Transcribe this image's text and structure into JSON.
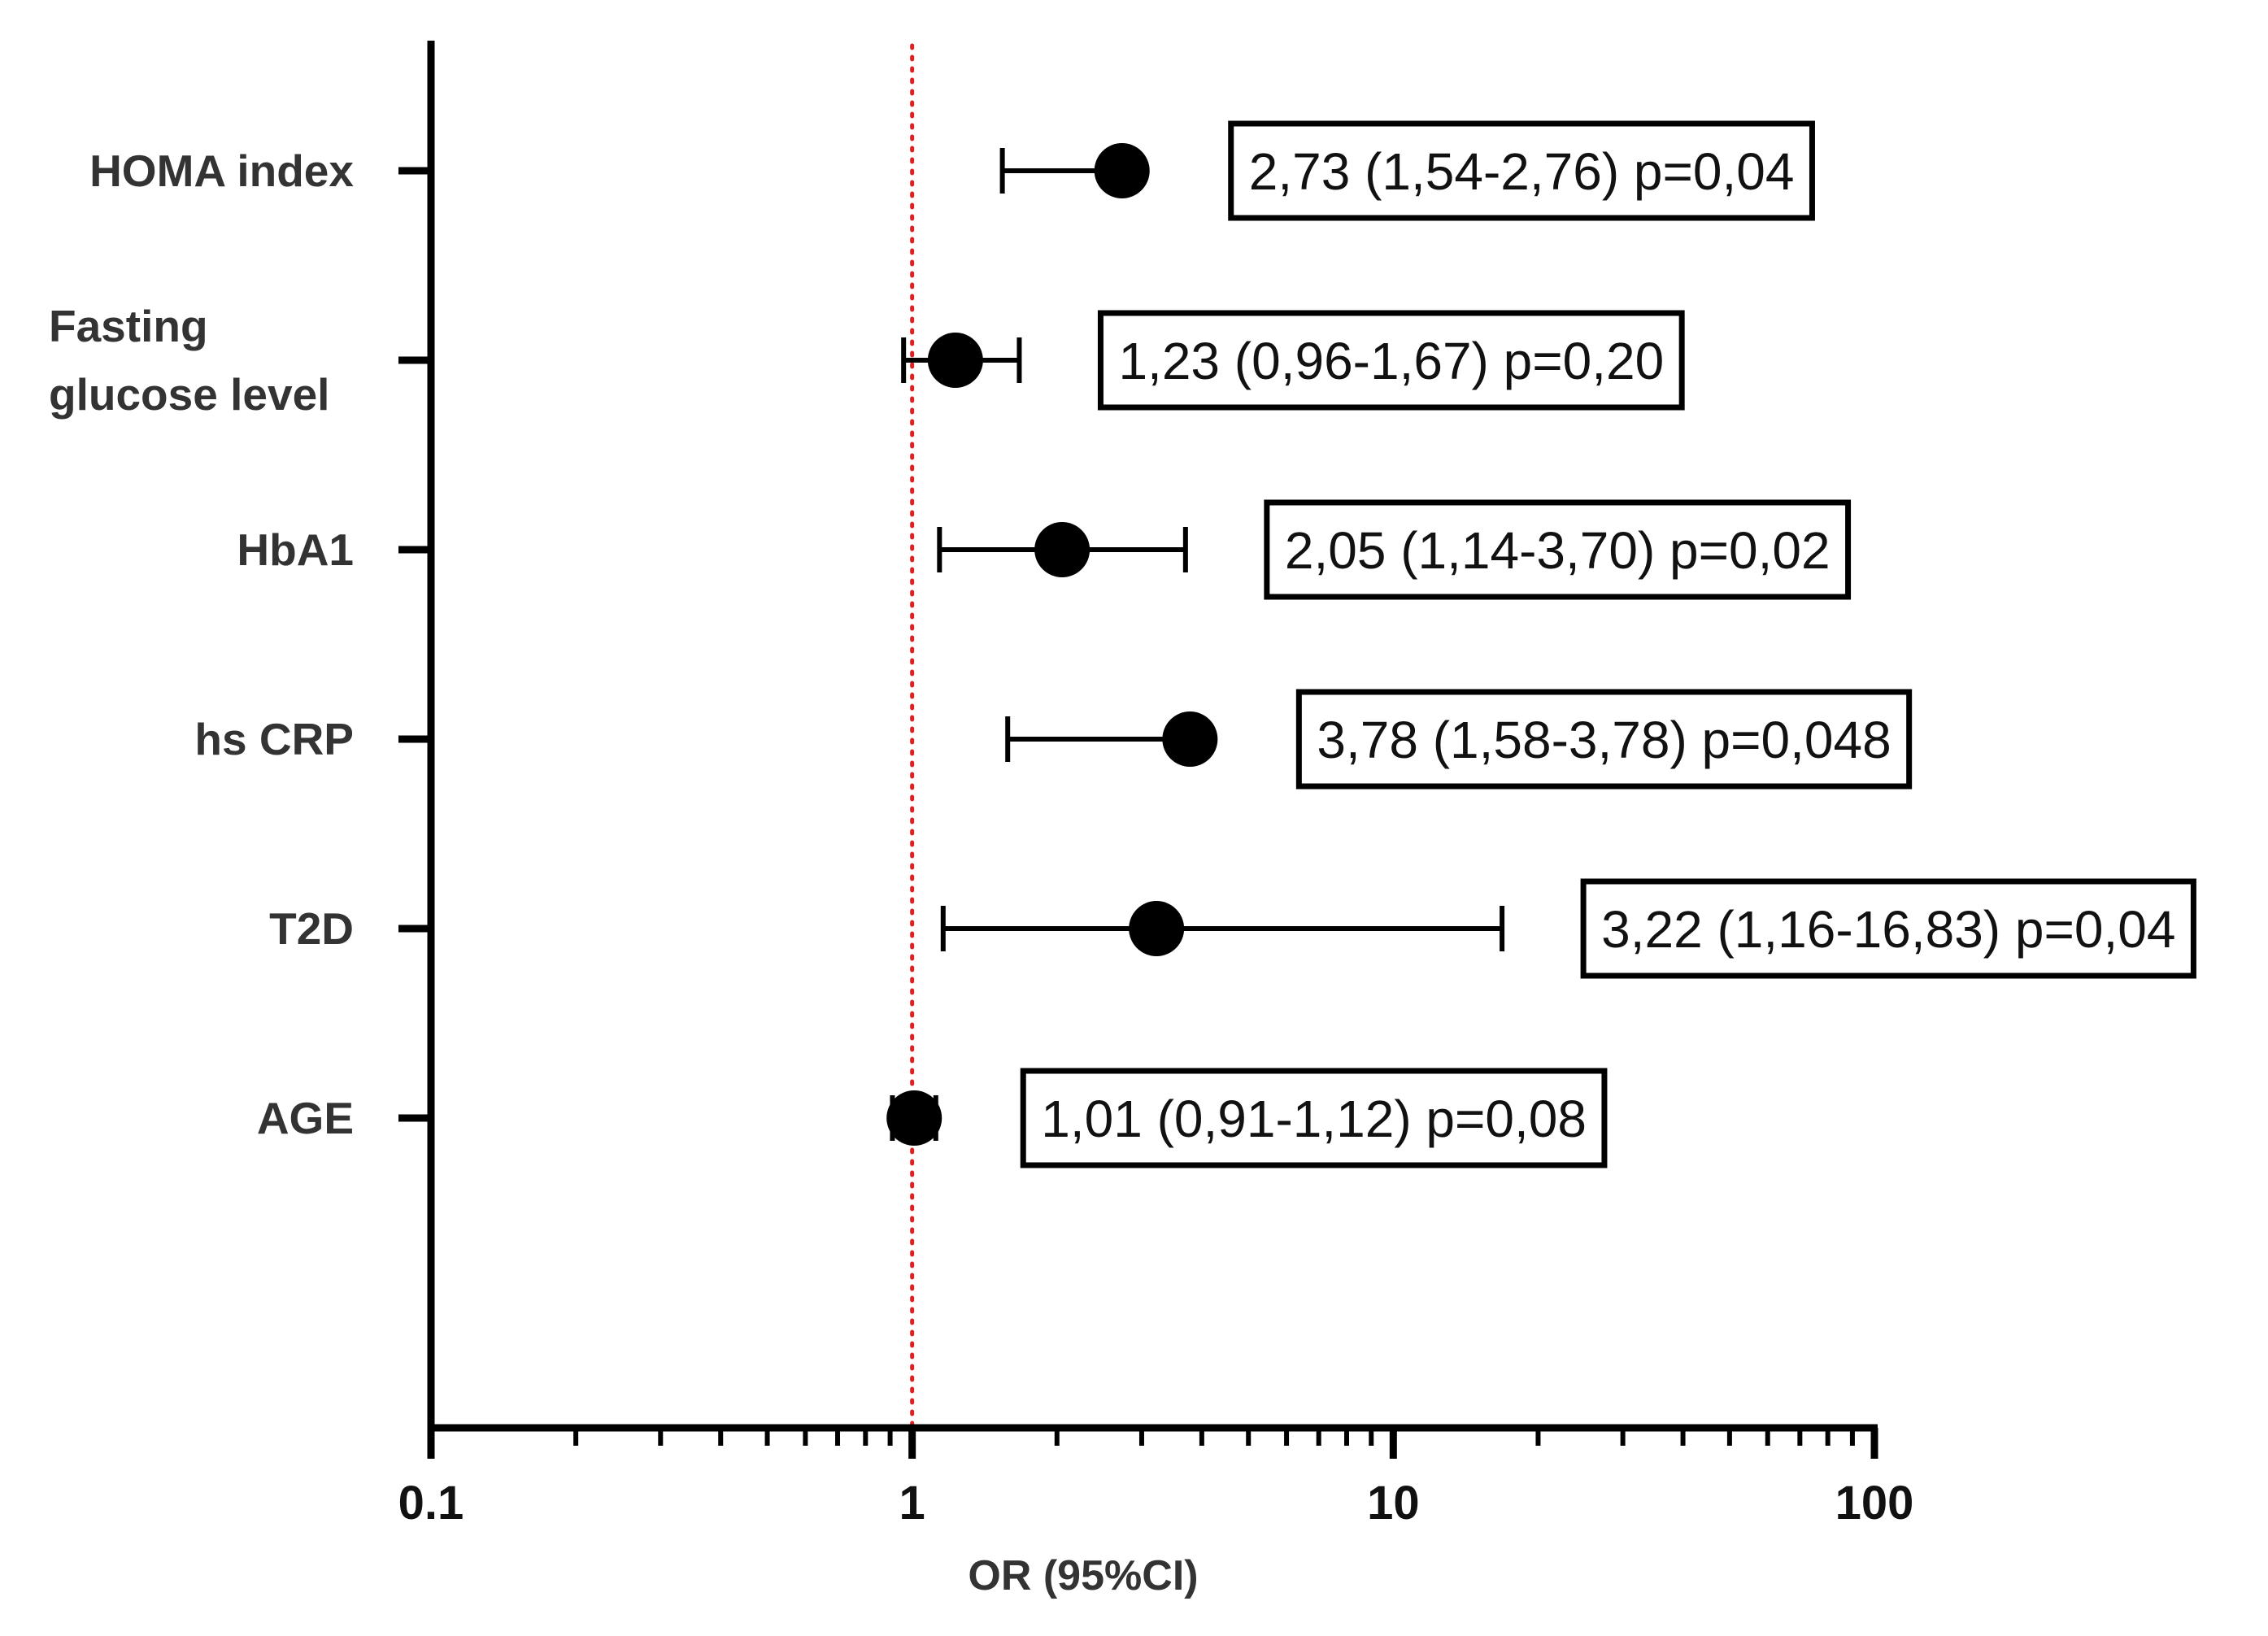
{
  "chart_data": {
    "type": "scatter",
    "subtype": "forest-plot",
    "xscale": "log",
    "xlim": [
      0.1,
      100
    ],
    "xticks": [
      0.1,
      1,
      10,
      100
    ],
    "xtick_labels": [
      "0.1",
      "1",
      "10",
      "100"
    ],
    "xlabel": "OR (95%CI)",
    "ylabel": "",
    "title": "",
    "reference_line": {
      "x": 1,
      "color": "#e02020",
      "style": "dotted"
    },
    "grid": false,
    "colors": {
      "marker": "#000000",
      "axis": "#000000",
      "reference": "#e02020"
    },
    "rows": [
      {
        "label": [
          "HOMA index"
        ],
        "or": 2.73,
        "ci_low": 1.54,
        "ci_high": 2.76,
        "annotation": "2,73 (1,54-2,76) p=0,04"
      },
      {
        "label": [
          "Fasting",
          "glucose level"
        ],
        "or": 1.23,
        "ci_low": 0.96,
        "ci_high": 1.67,
        "annotation": "1,23 (0,96-1,67) p=0,20"
      },
      {
        "label": [
          "HbA1"
        ],
        "or": 2.05,
        "ci_low": 1.14,
        "ci_high": 3.7,
        "annotation": "2,05 (1,14-3,70) p=0,02"
      },
      {
        "label": [
          "hs CRP"
        ],
        "or": 3.78,
        "ci_low": 1.58,
        "ci_high": 3.78,
        "annotation": "3,78 (1,58-3,78) p=0,048"
      },
      {
        "label": [
          "T2D"
        ],
        "or": 3.22,
        "ci_low": 1.16,
        "ci_high": 16.83,
        "annotation": "3,22 (1,16-16,83) p=0,04"
      },
      {
        "label": [
          "AGE"
        ],
        "or": 1.01,
        "ci_low": 0.91,
        "ci_high": 1.12,
        "annotation": "1,01 (0,91-1,12) p=0,08"
      }
    ]
  }
}
